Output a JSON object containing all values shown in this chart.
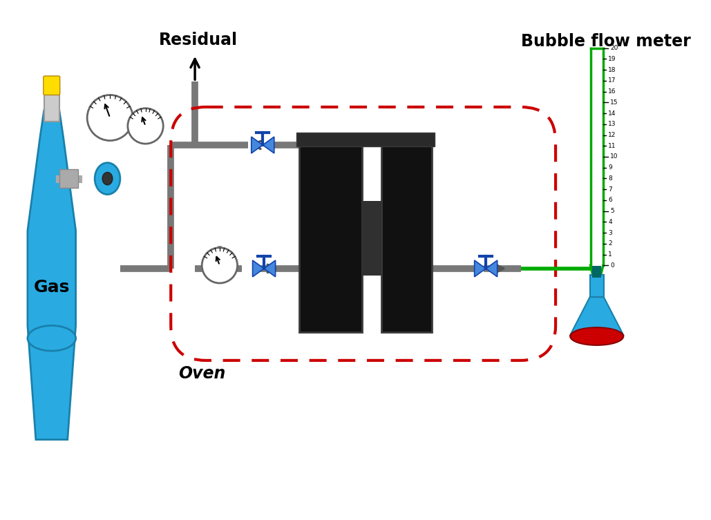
{
  "bg_color": "#ffffff",
  "gas_label": "Gas",
  "residual_label": "Residual",
  "oven_label": "Oven",
  "bubble_flow_meter_label": "Bubble flow meter",
  "pipe_color": "#787878",
  "green_color": "#00aa00",
  "pipe_lw": 7,
  "valve_color": "#4488dd",
  "valve_dark": "#1144aa",
  "cylinder_color": "#29abe2",
  "cylinder_edge": "#1a80aa",
  "gauge_edge": "#666666",
  "module_color": "#111111",
  "flask_color": "#29abe2",
  "flask_red": "#cc0000",
  "red_border": "#cc0000",
  "figw": 10.29,
  "figh": 7.53
}
